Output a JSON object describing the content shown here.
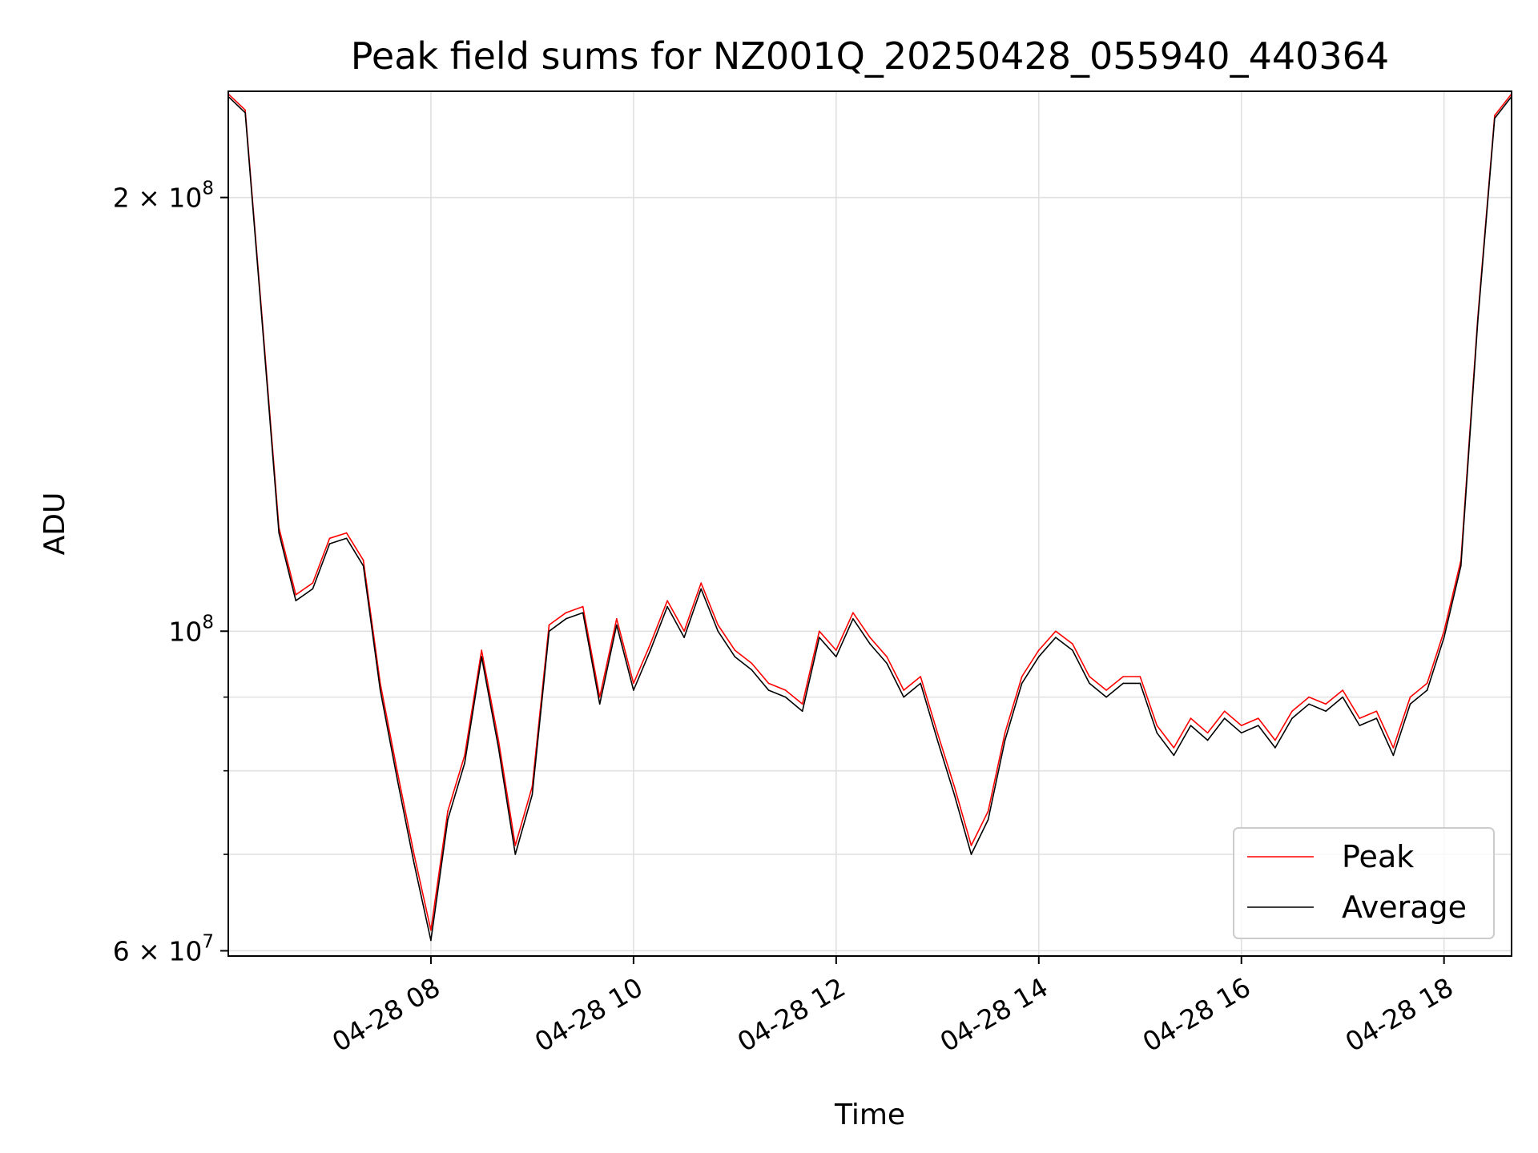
{
  "chart_data": {
    "type": "line",
    "title": "Peak field sums for NZ001Q_20250428_055940_440364",
    "xlabel": "Time",
    "ylabel": "ADU",
    "yscale": "log",
    "ylim": [
      59500000,
      237000000
    ],
    "xlim": [
      "04-28 06:00",
      "04-28 18:40"
    ],
    "grid": true,
    "legend_position": "lower-right",
    "x_ticks": [
      "04-28 08",
      "04-28 10",
      "04-28 12",
      "04-28 14",
      "04-28 16",
      "04-28 18"
    ],
    "y_ticks_major": [
      {
        "base": "2",
        "exp": "8"
      },
      {
        "base": "10",
        "exp": "8"
      },
      {
        "base": "6",
        "exp": "7"
      }
    ],
    "y_tick_values": [
      200000000,
      100000000,
      60000000
    ],
    "y_minor_values": [
      70000000,
      80000000,
      90000000
    ],
    "x": [
      "06:00",
      "06:10",
      "06:20",
      "06:30",
      "06:40",
      "06:50",
      "07:00",
      "07:10",
      "07:20",
      "07:30",
      "07:40",
      "07:50",
      "08:00",
      "08:10",
      "08:20",
      "08:30",
      "08:40",
      "08:50",
      "09:00",
      "09:10",
      "09:20",
      "09:30",
      "09:40",
      "09:50",
      "10:00",
      "10:10",
      "10:20",
      "10:30",
      "10:40",
      "10:50",
      "11:00",
      "11:10",
      "11:20",
      "11:30",
      "11:40",
      "11:50",
      "12:00",
      "12:10",
      "12:20",
      "12:30",
      "12:40",
      "12:50",
      "13:00",
      "13:10",
      "13:20",
      "13:30",
      "13:40",
      "13:50",
      "14:00",
      "14:10",
      "14:20",
      "14:30",
      "14:40",
      "14:50",
      "15:00",
      "15:10",
      "15:20",
      "15:30",
      "15:40",
      "15:50",
      "16:00",
      "16:10",
      "16:20",
      "16:30",
      "16:40",
      "16:50",
      "17:00",
      "17:10",
      "17:20",
      "17:30",
      "17:40",
      "17:50",
      "18:00",
      "18:10",
      "18:20",
      "18:30",
      "18:40"
    ],
    "series": [
      {
        "name": "Peak",
        "color": "#ff0000",
        "values": [
          236000000,
          230000000,
          165000000,
          118000000,
          106000000,
          108000000,
          116000000,
          117000000,
          112000000,
          92000000,
          80000000,
          70000000,
          62000000,
          75000000,
          82000000,
          97000000,
          84000000,
          71000000,
          78000000,
          101000000,
          103000000,
          104000000,
          90000000,
          102000000,
          92000000,
          98000000,
          105000000,
          100000000,
          108000000,
          101000000,
          97000000,
          95000000,
          92000000,
          91000000,
          89000000,
          100000000,
          97000000,
          103000000,
          99000000,
          96000000,
          91000000,
          93000000,
          85000000,
          78000000,
          71000000,
          75000000,
          85000000,
          93000000,
          97000000,
          100000000,
          98000000,
          93000000,
          91000000,
          93000000,
          93000000,
          86000000,
          83000000,
          87000000,
          85000000,
          88000000,
          86000000,
          87000000,
          84000000,
          88000000,
          90000000,
          89000000,
          91000000,
          87000000,
          88000000,
          83000000,
          90000000,
          92000000,
          100000000,
          112000000,
          165000000,
          228000000,
          236000000
        ]
      },
      {
        "name": "Average",
        "color": "#000000",
        "values": [
          235000000,
          229000000,
          164000000,
          117000000,
          105000000,
          107000000,
          115000000,
          116000000,
          111000000,
          91000000,
          79000000,
          69000000,
          61000000,
          74000000,
          81000000,
          96000000,
          83000000,
          70000000,
          77000000,
          100000000,
          102000000,
          103000000,
          89000000,
          101000000,
          91000000,
          97000000,
          104000000,
          99000000,
          107000000,
          100000000,
          96000000,
          94000000,
          91000000,
          90000000,
          88000000,
          99000000,
          96000000,
          102000000,
          98000000,
          95000000,
          90000000,
          92000000,
          84000000,
          77000000,
          70000000,
          74000000,
          84000000,
          92000000,
          96000000,
          99000000,
          97000000,
          92000000,
          90000000,
          92000000,
          92000000,
          85000000,
          82000000,
          86000000,
          84000000,
          87000000,
          85000000,
          86000000,
          83000000,
          87000000,
          89000000,
          88000000,
          90000000,
          86000000,
          87000000,
          82000000,
          89000000,
          91000000,
          99000000,
          111000000,
          164000000,
          227000000,
          235000000
        ]
      }
    ]
  }
}
